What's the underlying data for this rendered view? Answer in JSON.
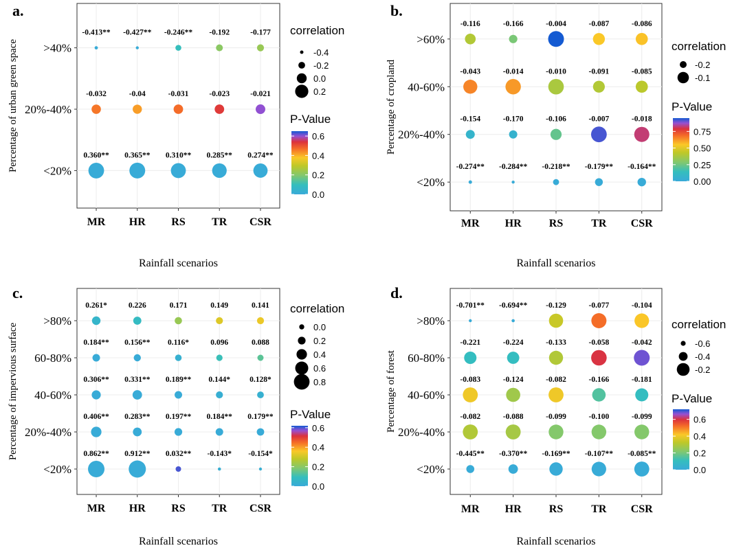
{
  "xlabel": "Rainfall scenarios",
  "legend": {
    "size_title": "correlation",
    "color_title": "P-Value"
  },
  "chart_data": [
    {
      "type": "bubble-matrix",
      "panel": "a.",
      "ylabel": "Percentage of urban green space",
      "categories": [
        "MR",
        "HR",
        "RS",
        "TR",
        "CSR"
      ],
      "rows": [
        {
          "label": ">40%",
          "labels": [
            "-0.413**",
            "-0.427**",
            "-0.246**",
            "-0.192",
            "-0.177"
          ],
          "r": [
            -0.413,
            -0.427,
            -0.246,
            -0.192,
            -0.177
          ],
          "p": [
            0.005,
            0.005,
            0.1,
            0.21,
            0.23
          ]
        },
        {
          "label": "20%-40%",
          "labels": [
            "-0.032",
            "-0.04",
            "-0.031",
            "-0.023",
            "-0.021"
          ],
          "r": [
            -0.032,
            -0.04,
            -0.031,
            -0.023,
            -0.021
          ],
          "p": [
            0.46,
            0.42,
            0.47,
            0.53,
            0.6
          ]
        },
        {
          "label": "<20%",
          "labels": [
            "0.360**",
            "0.365**",
            "0.310**",
            "0.285**",
            "0.274**"
          ],
          "r": [
            0.36,
            0.365,
            0.31,
            0.285,
            0.274
          ],
          "p": [
            0.005,
            0.005,
            0.005,
            0.005,
            0.005
          ]
        }
      ],
      "size_legend": {
        "values": [
          -0.4,
          -0.2,
          0.0,
          0.2
        ],
        "labels": [
          "-0.4",
          "-0.2",
          "0.0",
          "0.2"
        ]
      },
      "color_legend": {
        "range": [
          0,
          0.65
        ],
        "ticks": [
          0.6,
          0.4,
          0.2,
          0.0
        ],
        "labels": [
          "0.6",
          "0.4",
          "0.2",
          "0.0"
        ]
      }
    },
    {
      "type": "bubble-matrix",
      "panel": "b.",
      "ylabel": "Percentage of cropland",
      "categories": [
        "MR",
        "HR",
        "RS",
        "TR",
        "CSR"
      ],
      "rows": [
        {
          "label": ">60%",
          "labels": [
            "-0.116",
            "-0.166",
            "-0.004",
            "-0.087",
            "-0.086"
          ],
          "r": [
            -0.116,
            -0.166,
            -0.004,
            -0.087,
            -0.086
          ],
          "p": [
            0.4,
            0.27,
            0.96,
            0.55,
            0.56
          ]
        },
        {
          "label": "40-60%",
          "labels": [
            "-0.043",
            "-0.014",
            "-0.010",
            "-0.091",
            "-0.085"
          ],
          "r": [
            -0.043,
            -0.014,
            -0.01,
            -0.091,
            -0.085
          ],
          "p": [
            0.65,
            0.62,
            0.38,
            0.4,
            0.42
          ]
        },
        {
          "label": "20%-40%",
          "labels": [
            "-0.154",
            "-0.170",
            "-0.106",
            "-0.007",
            "-0.018"
          ],
          "r": [
            -0.154,
            -0.17,
            -0.106,
            -0.007,
            -0.018
          ],
          "p": [
            0.07,
            0.06,
            0.23,
            0.92,
            0.82
          ]
        },
        {
          "label": "<20%",
          "labels": [
            "-0.274**",
            "-0.284**",
            "-0.218**",
            "-0.179**",
            "-0.164**"
          ],
          "r": [
            -0.274,
            -0.284,
            -0.218,
            -0.179,
            -0.164
          ],
          "p": [
            0.005,
            0.005,
            0.005,
            0.005,
            0.005
          ]
        }
      ],
      "size_legend": {
        "values": [
          -0.2,
          -0.1
        ],
        "labels": [
          "-0.2",
          "-0.1"
        ]
      },
      "color_legend": {
        "range": [
          0,
          0.95
        ],
        "ticks": [
          0.75,
          0.5,
          0.25,
          0.0
        ],
        "labels": [
          "0.75",
          "0.50",
          "0.25",
          "0.00"
        ]
      }
    },
    {
      "type": "bubble-matrix",
      "panel": "c.",
      "ylabel": "Percentage of impervious surface",
      "categories": [
        "MR",
        "HR",
        "RS",
        "TR",
        "CSR"
      ],
      "rows": [
        {
          "label": ">80%",
          "labels": [
            "0.261*",
            "0.226",
            "0.171",
            "0.149",
            "0.141"
          ],
          "r": [
            0.261,
            0.226,
            0.171,
            0.149,
            0.141
          ],
          "p": [
            0.05,
            0.08,
            0.22,
            0.32,
            0.34
          ]
        },
        {
          "label": "60-80%",
          "labels": [
            "0.184**",
            "0.156**",
            "0.116*",
            "0.096",
            "0.088"
          ],
          "r": [
            0.184,
            0.156,
            0.116,
            0.096,
            0.088
          ],
          "p": [
            0.005,
            0.005,
            0.03,
            0.1,
            0.14
          ]
        },
        {
          "label": "40-60%",
          "labels": [
            "0.306**",
            "0.331**",
            "0.189**",
            "0.144*",
            "0.128*"
          ],
          "r": [
            0.306,
            0.331,
            0.189,
            0.144,
            0.128
          ],
          "p": [
            0.005,
            0.005,
            0.005,
            0.02,
            0.03
          ]
        },
        {
          "label": "20%-40%",
          "labels": [
            "0.406**",
            "0.283**",
            "0.197**",
            "0.184**",
            "0.179**"
          ],
          "r": [
            0.406,
            0.283,
            0.197,
            0.184,
            0.179
          ],
          "p": [
            0.005,
            0.005,
            0.005,
            0.005,
            0.005
          ]
        },
        {
          "label": "<20%",
          "labels": [
            "0.862**",
            "0.912**",
            "0.032**",
            "-0.143*",
            "-0.154*"
          ],
          "r": [
            0.862,
            0.912,
            0.032,
            -0.143,
            -0.154
          ],
          "p": [
            0.005,
            0.005,
            0.6,
            0.02,
            0.02
          ]
        }
      ],
      "size_legend": {
        "values": [
          0.0,
          0.2,
          0.4,
          0.6,
          0.8
        ],
        "labels": [
          "0.0",
          "0.2",
          "0.4",
          "0.6",
          "0.8"
        ]
      },
      "color_legend": {
        "range": [
          0,
          0.62
        ],
        "ticks": [
          0.6,
          0.4,
          0.2,
          0.0
        ],
        "labels": [
          "0.6",
          "0.4",
          "0.2",
          "0.0"
        ]
      }
    },
    {
      "type": "bubble-matrix",
      "panel": "d.",
      "ylabel": "Percentage of forest",
      "categories": [
        "MR",
        "HR",
        "RS",
        "TR",
        "CSR"
      ],
      "rows": [
        {
          "label": ">80%",
          "labels": [
            "-0.701**",
            "-0.694**",
            "-0.129",
            "-0.077",
            "-0.104"
          ],
          "r": [
            -0.701,
            -0.694,
            -0.129,
            -0.077,
            -0.104
          ],
          "p": [
            0.005,
            0.005,
            0.34,
            0.52,
            0.42
          ]
        },
        {
          "label": "60-80%",
          "labels": [
            "-0.221",
            "-0.224",
            "-0.133",
            "-0.058",
            "-0.042"
          ],
          "r": [
            -0.221,
            -0.224,
            -0.133,
            -0.058,
            -0.042
          ],
          "p": [
            0.1,
            0.1,
            0.3,
            0.6,
            0.68
          ]
        },
        {
          "label": "40-60%",
          "labels": [
            "-0.083",
            "-0.124",
            "-0.082",
            "-0.166",
            "-0.181"
          ],
          "r": [
            -0.083,
            -0.124,
            -0.082,
            -0.166,
            -0.181
          ],
          "p": [
            0.4,
            0.27,
            0.4,
            0.15,
            0.1
          ]
        },
        {
          "label": "20%-40%",
          "labels": [
            "-0.082",
            "-0.088",
            "-0.099",
            "-0.100",
            "-0.099"
          ],
          "r": [
            -0.082,
            -0.088,
            -0.099,
            -0.1,
            -0.099
          ],
          "p": [
            0.3,
            0.28,
            0.22,
            0.22,
            0.22
          ]
        },
        {
          "label": "<20%",
          "labels": [
            "-0.445**",
            "-0.370**",
            "-0.169**",
            "-0.107**",
            "-0.085**"
          ],
          "r": [
            -0.445,
            -0.37,
            -0.169,
            -0.107,
            -0.085
          ],
          "p": [
            0.005,
            0.005,
            0.005,
            0.005,
            0.005
          ]
        }
      ],
      "size_legend": {
        "values": [
          -0.6,
          -0.4,
          -0.2
        ],
        "labels": [
          "-0.6",
          "-0.4",
          "-0.2"
        ]
      },
      "color_legend": {
        "range": [
          0,
          0.72
        ],
        "ticks": [
          0.6,
          0.4,
          0.2,
          0.0
        ],
        "labels": [
          "0.6",
          "0.4",
          "0.2",
          "0.0"
        ]
      }
    }
  ]
}
